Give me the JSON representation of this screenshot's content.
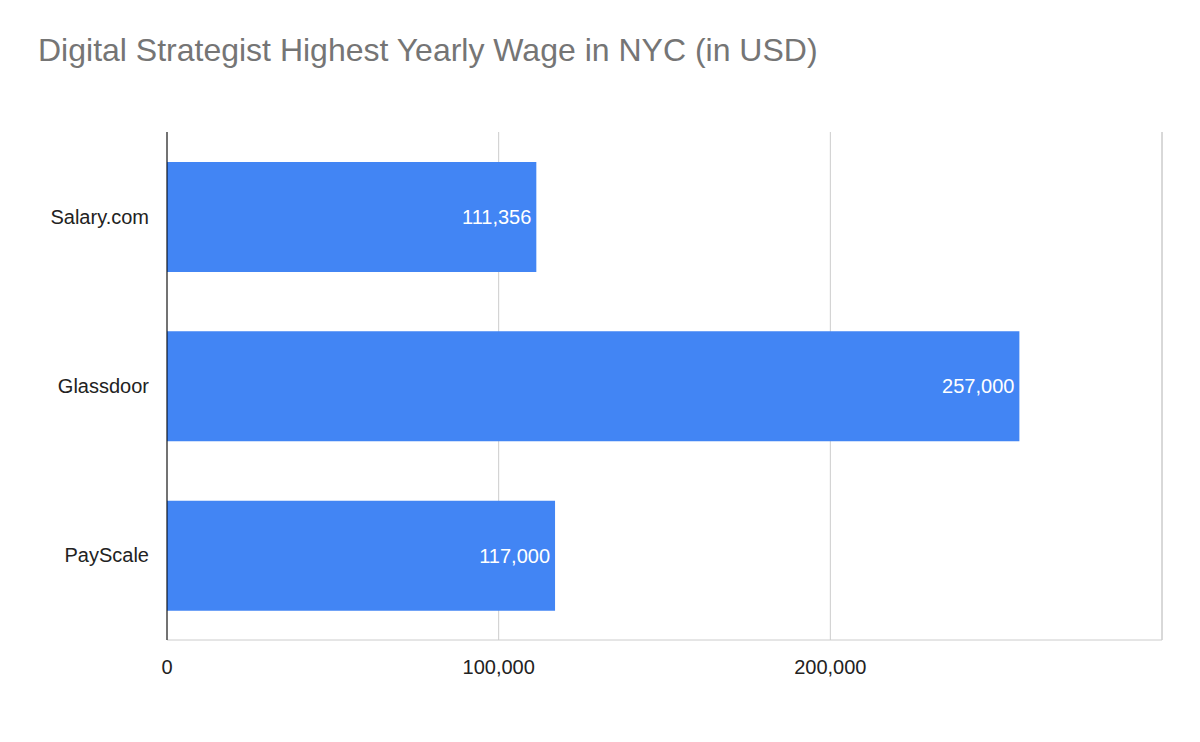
{
  "chart_data": {
    "type": "bar",
    "title": "Digital Strategist Highest Yearly Wage in NYC (in USD)",
    "orientation": "horizontal",
    "categories": [
      "Salary.com",
      "Glassdoor",
      "PayScale"
    ],
    "values": [
      111356,
      257000,
      117000
    ],
    "value_labels": [
      "111,356",
      "257,000",
      "117,000"
    ],
    "data_labels": true,
    "color": "#4285f4",
    "xlim": [
      0,
      300000
    ],
    "xticks": [
      0,
      {
        "value": 100000,
        "label": "100,000"
      },
      {
        "value": 200000,
        "label": "200,000"
      }
    ],
    "grid": true
  }
}
